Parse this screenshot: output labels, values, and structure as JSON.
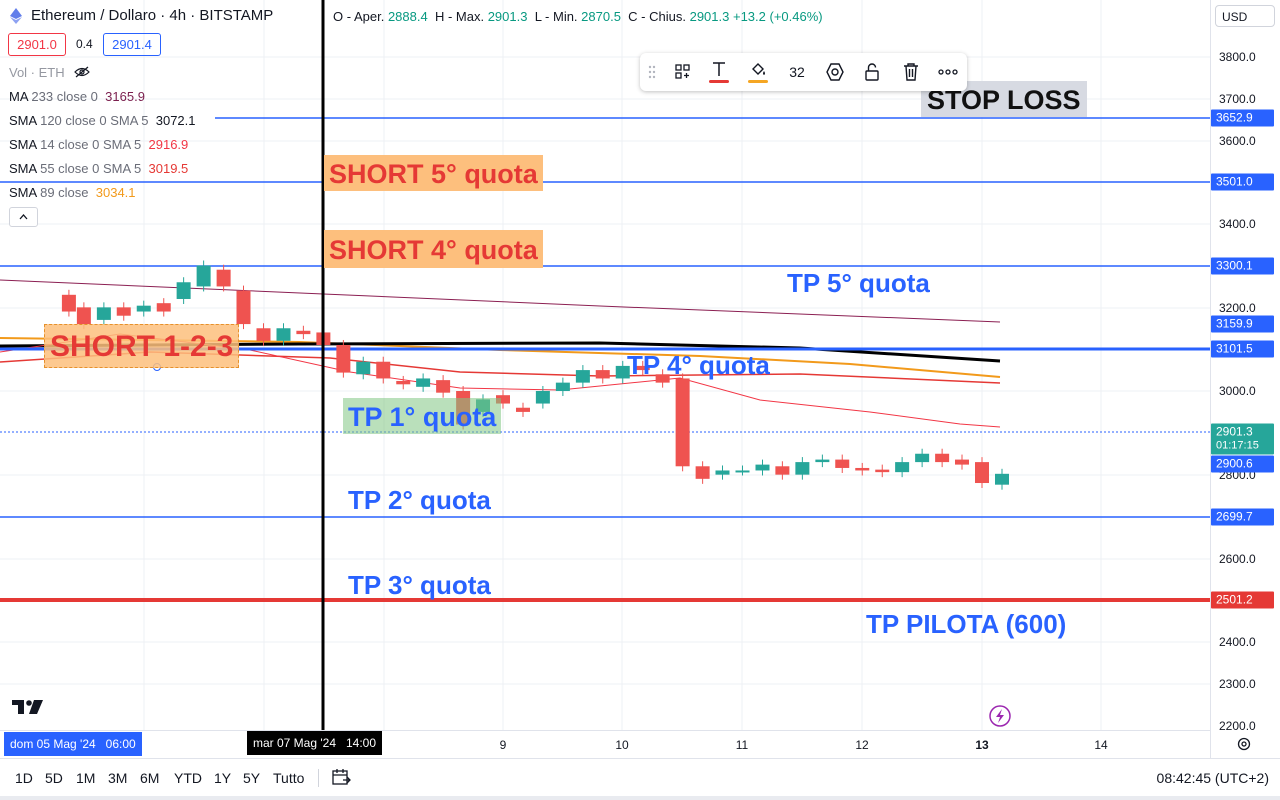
{
  "header": {
    "symbol": "Ethereum / Dollaro · 4h · BITSTAMP",
    "ohlc": {
      "o_label": "O - Aper.",
      "o": "2888.4",
      "h_label": "H - Max.",
      "h": "2901.3",
      "l_label": "L - Min.",
      "l": "2870.5",
      "c_label": "C - Chius.",
      "c": "2901.3",
      "change": "+13.2 (+0.46%)"
    },
    "sell_price": "2901.0",
    "spread": "0.4",
    "buy_price": "2901.4"
  },
  "currency": "USD",
  "legend": {
    "vol": "Vol · ETH",
    "rows": [
      {
        "label": "MA",
        "params": "233 close 0",
        "value": "3165.9",
        "color": "#7b1f4e"
      },
      {
        "label": "SMA",
        "params": "120 close 0 SMA 5",
        "value": "3072.1",
        "color": "#131722"
      },
      {
        "label": "SMA",
        "params": "14 close 0 SMA 5",
        "value": "2916.9",
        "color": "#f23645"
      },
      {
        "label": "SMA",
        "params": "55 close 0 SMA 5",
        "value": "3019.5",
        "color": "#e53935"
      },
      {
        "label": "SMA",
        "params": "89 close",
        "value": "3034.1",
        "color": "#f29a1b"
      }
    ],
    "collapse_icon": "chevron-up-icon"
  },
  "toolbar": {
    "font_size": "32",
    "icons": [
      "drag-handle-icon",
      "templates-icon",
      "text-color-icon",
      "fill-color-icon",
      "settings-icon",
      "lock-icon",
      "trash-icon",
      "more-icon"
    ],
    "text_color": "#e53935",
    "fill_color": "#f5a623"
  },
  "annotations": {
    "stop_loss": "STOP LOSS",
    "short5": "SHORT 5° quota",
    "short4": "SHORT 4° quota",
    "short123": "SHORT 1-2-3",
    "tp5": "TP 5° quota",
    "tp4": "TP 4° quota",
    "tp1": "TP 1° quota",
    "tp2": "TP 2° quota",
    "tp3": "TP 3° quota",
    "tp_pilota": "TP PILOTA (600)"
  },
  "price_axis": {
    "ticks": [
      "3800.0",
      "3700.0",
      "3600.0",
      "3400.0",
      "3200.0",
      "3000.0",
      "2800.0",
      "2600.0",
      "2400.0",
      "2300.0",
      "2200.0"
    ],
    "tags": [
      {
        "label": "3652.9",
        "color": "#2962ff"
      },
      {
        "label": "3501.0",
        "color": "#2962ff"
      },
      {
        "label": "3300.1",
        "color": "#2962ff"
      },
      {
        "label": "3159.9",
        "color": "#2962ff"
      },
      {
        "label": "3101.5",
        "color": "#2962ff"
      },
      {
        "label": "2901.3",
        "sub": "01:17:15",
        "color": "#26a69a"
      },
      {
        "label": "2900.6",
        "color": "#2962ff"
      },
      {
        "label": "2699.7",
        "color": "#2962ff"
      },
      {
        "label": "2501.2",
        "color": "#e53935"
      }
    ]
  },
  "time_axis": {
    "ticks": [
      "9",
      "10",
      "11",
      "12",
      "13",
      "14"
    ],
    "left_label": "dom 05 Mag '24   06:00",
    "cursor_label": "mar 07 Mag '24   14:00"
  },
  "ranges": [
    "1D",
    "5D",
    "1M",
    "3M",
    "6M",
    "YTD",
    "1Y",
    "5Y",
    "Tutto"
  ],
  "clock": "08:42:45 (UTC+2)",
  "colors": {
    "up": "#26a69a",
    "down": "#ef5350",
    "line_blue": "#2962ff",
    "line_red": "#e53935"
  },
  "chart_data": {
    "type": "candlestick",
    "price_range": [
      2200,
      3850
    ],
    "x_range_days": [
      5.3,
      14.9
    ],
    "candles": [
      {
        "t": 5.375,
        "o": 3115,
        "c": 3095
      },
      {
        "t": 5.5,
        "o": 3100,
        "c": 3080
      },
      {
        "t": 5.667,
        "o": 3085,
        "c": 3100
      },
      {
        "t": 5.833,
        "o": 3100,
        "c": 3090
      },
      {
        "t": 6.0,
        "o": 3095,
        "c": 3102
      },
      {
        "t": 6.167,
        "o": 3105,
        "c": 3095
      },
      {
        "t": 6.333,
        "o": 3110,
        "c": 3130
      },
      {
        "t": 6.5,
        "o": 3125,
        "c": 3150
      },
      {
        "t": 6.667,
        "o": 3145,
        "c": 3125
      },
      {
        "t": 6.833,
        "o": 3120,
        "c": 3080
      },
      {
        "t": 7.0,
        "o": 3075,
        "c": 3060
      },
      {
        "t": 7.167,
        "o": 3060,
        "c": 3075
      },
      {
        "t": 7.333,
        "o": 3072,
        "c": 3068
      },
      {
        "t": 7.5,
        "o": 3070,
        "c": 3055
      },
      {
        "t": 7.667,
        "o": 3055,
        "c": 3022
      },
      {
        "t": 7.833,
        "o": 3020,
        "c": 3035
      },
      {
        "t": 8.0,
        "o": 3035,
        "c": 3015
      },
      {
        "t": 8.167,
        "o": 3012,
        "c": 3008
      },
      {
        "t": 8.333,
        "o": 3005,
        "c": 3015
      },
      {
        "t": 8.5,
        "o": 3013,
        "c": 2998
      },
      {
        "t": 8.667,
        "o": 3000,
        "c": 2960
      },
      {
        "t": 8.833,
        "o": 2975,
        "c": 2990
      },
      {
        "t": 9.0,
        "o": 2995,
        "c": 2985
      },
      {
        "t": 9.167,
        "o": 2980,
        "c": 2975
      },
      {
        "t": 9.333,
        "o": 2985,
        "c": 3000
      },
      {
        "t": 9.5,
        "o": 3000,
        "c": 3010
      },
      {
        "t": 9.667,
        "o": 3010,
        "c": 3025
      },
      {
        "t": 9.833,
        "o": 3025,
        "c": 3015
      },
      {
        "t": 10.0,
        "o": 3015,
        "c": 3030
      },
      {
        "t": 10.167,
        "o": 3030,
        "c": 3025
      },
      {
        "t": 10.333,
        "o": 3020,
        "c": 3010
      },
      {
        "t": 10.5,
        "o": 3015,
        "c": 2910
      },
      {
        "t": 10.667,
        "o": 2910,
        "c": 2895
      },
      {
        "t": 10.833,
        "o": 2900,
        "c": 2905
      },
      {
        "t": 11.0,
        "o": 2905,
        "c": 2905
      },
      {
        "t": 11.167,
        "o": 2905,
        "c": 2912
      },
      {
        "t": 11.333,
        "o": 2910,
        "c": 2900
      },
      {
        "t": 11.5,
        "o": 2900,
        "c": 2915
      },
      {
        "t": 11.667,
        "o": 2915,
        "c": 2918
      },
      {
        "t": 11.833,
        "o": 2918,
        "c": 2908
      },
      {
        "t": 12.0,
        "o": 2908,
        "c": 2905
      },
      {
        "t": 12.167,
        "o": 2906,
        "c": 2903
      },
      {
        "t": 12.333,
        "o": 2903,
        "c": 2915
      },
      {
        "t": 12.5,
        "o": 2915,
        "c": 2925
      },
      {
        "t": 12.667,
        "o": 2925,
        "c": 2915
      },
      {
        "t": 12.833,
        "o": 2918,
        "c": 2912
      },
      {
        "t": 13.0,
        "o": 2915,
        "c": 2890
      },
      {
        "t": 13.167,
        "o": 2888,
        "c": 2901
      }
    ]
  }
}
